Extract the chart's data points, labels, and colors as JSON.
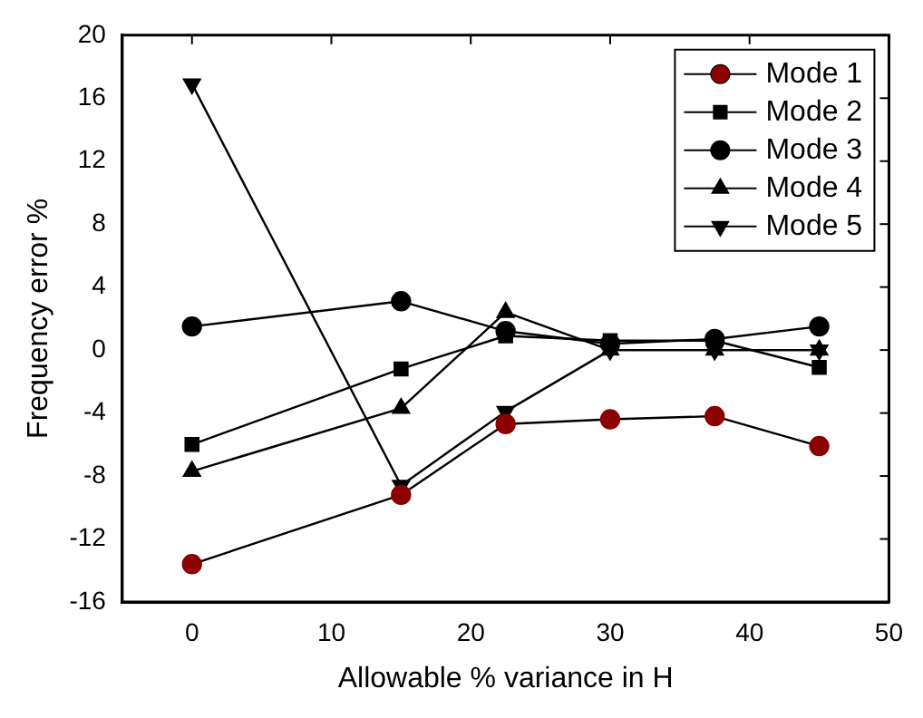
{
  "chart_data": {
    "type": "line",
    "xlabel": "Allowable % variance in H",
    "ylabel": "Frequency error %",
    "x": [
      0,
      15,
      22.5,
      30,
      37.5,
      45
    ],
    "xlim": [
      -5,
      50
    ],
    "xticks": [
      0,
      10,
      20,
      30,
      40,
      50
    ],
    "ylim": [
      -16,
      20
    ],
    "yticks": [
      -16,
      -12,
      -8,
      -4,
      0,
      4,
      8,
      12,
      16,
      20
    ],
    "grid": false,
    "legend": "top right",
    "series": [
      {
        "name": "Mode 1",
        "color": "#8b0000",
        "marker": "circle",
        "values": [
          -13.6,
          -9.2,
          -4.7,
          -4.4,
          -4.2,
          -6.1
        ]
      },
      {
        "name": "Mode 2",
        "color": "#000000",
        "marker": "square",
        "values": [
          -6,
          -1.2,
          0.9,
          0.6,
          0.6,
          -1.1
        ]
      },
      {
        "name": "Mode 3",
        "color": "#000000",
        "marker": "circle",
        "values": [
          1.5,
          3.1,
          1.2,
          0.4,
          0.7,
          1.5
        ]
      },
      {
        "name": "Mode 4",
        "color": "#000000",
        "marker": "triangle",
        "values": [
          -7.7,
          -3.7,
          2.4,
          0,
          0,
          0
        ]
      },
      {
        "name": "Mode 5",
        "color": "#000000",
        "marker": "triangle-down",
        "values": [
          16.9,
          -8.6,
          -3.9,
          0,
          0,
          0
        ]
      }
    ]
  }
}
